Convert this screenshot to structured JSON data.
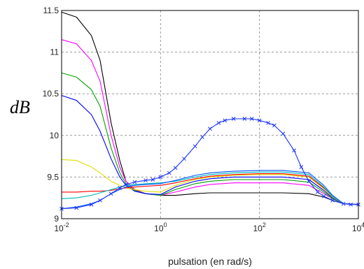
{
  "chart_data": {
    "type": "line",
    "title": "",
    "xlabel": "pulsation (en rad/s)",
    "ylabel": "dB",
    "xscale": "log",
    "xlim": [
      0.01,
      10000
    ],
    "ylim": [
      9,
      11.5
    ],
    "grid": true,
    "x_ticks": [
      {
        "value": 0.01,
        "base": "10",
        "exp": "-2"
      },
      {
        "value": 1,
        "base": "10",
        "exp": "0"
      },
      {
        "value": 100,
        "base": "10",
        "exp": "2"
      },
      {
        "value": 10000,
        "base": "10",
        "exp": "4"
      }
    ],
    "y_ticks": [
      {
        "value": 9,
        "label": "9"
      },
      {
        "value": 9.5,
        "label": "9.5"
      },
      {
        "value": 10,
        "label": "10"
      },
      {
        "value": 10.5,
        "label": "10.5"
      },
      {
        "value": 11,
        "label": "11"
      },
      {
        "value": 11.5,
        "label": "11.5"
      }
    ],
    "series": [
      {
        "color": "#000000",
        "x": [
          0.01,
          0.02,
          0.04,
          0.06,
          0.1,
          0.15,
          0.2,
          0.3,
          0.5,
          1,
          2,
          5,
          10,
          30,
          100,
          300,
          1000,
          2000,
          3000,
          5000,
          10000
        ],
        "y": [
          11.48,
          11.42,
          11.2,
          10.9,
          10.15,
          9.7,
          9.45,
          9.35,
          9.3,
          9.28,
          9.28,
          9.3,
          9.31,
          9.31,
          9.31,
          9.31,
          9.3,
          9.26,
          9.22,
          9.18,
          9.17
        ]
      },
      {
        "color": "#ff00ff",
        "x": [
          0.01,
          0.02,
          0.04,
          0.06,
          0.1,
          0.15,
          0.2,
          0.3,
          0.5,
          1,
          2,
          5,
          10,
          30,
          100,
          300,
          1000,
          2000,
          3000,
          5000,
          10000
        ],
        "y": [
          11.15,
          11.1,
          10.9,
          10.65,
          10.0,
          9.62,
          9.45,
          9.35,
          9.3,
          9.28,
          9.32,
          9.38,
          9.41,
          9.43,
          9.43,
          9.43,
          9.4,
          9.3,
          9.24,
          9.18,
          9.17
        ]
      },
      {
        "color": "#00a000",
        "x": [
          0.01,
          0.02,
          0.04,
          0.06,
          0.1,
          0.15,
          0.2,
          0.3,
          0.5,
          1,
          2,
          5,
          10,
          30,
          100,
          300,
          1000,
          2000,
          3000,
          5000,
          10000
        ],
        "y": [
          10.75,
          10.7,
          10.55,
          10.35,
          9.85,
          9.55,
          9.42,
          9.34,
          9.3,
          9.28,
          9.35,
          9.42,
          9.45,
          9.47,
          9.47,
          9.47,
          9.44,
          9.32,
          9.24,
          9.18,
          9.17
        ]
      },
      {
        "color": "#0000ff",
        "x": [
          0.01,
          0.02,
          0.04,
          0.06,
          0.1,
          0.15,
          0.2,
          0.3,
          0.5,
          1,
          2,
          5,
          10,
          30,
          100,
          300,
          1000,
          2000,
          3000,
          5000,
          10000
        ],
        "y": [
          10.48,
          10.42,
          10.25,
          10.05,
          9.72,
          9.5,
          9.4,
          9.33,
          9.3,
          9.29,
          9.38,
          9.45,
          9.48,
          9.5,
          9.5,
          9.5,
          9.47,
          9.34,
          9.25,
          9.18,
          9.17
        ]
      },
      {
        "color": "#dddd00",
        "x": [
          0.01,
          0.02,
          0.04,
          0.06,
          0.1,
          0.15,
          0.2,
          0.3,
          0.5,
          1,
          2,
          5,
          10,
          30,
          100,
          300,
          1000,
          2000,
          3000,
          5000,
          10000
        ],
        "y": [
          9.71,
          9.7,
          9.62,
          9.55,
          9.45,
          9.4,
          9.37,
          9.35,
          9.33,
          9.32,
          9.4,
          9.47,
          9.5,
          9.52,
          9.53,
          9.53,
          9.5,
          9.36,
          9.26,
          9.18,
          9.17
        ]
      },
      {
        "color": "#ff0000",
        "x": [
          0.01,
          0.02,
          0.04,
          0.06,
          0.1,
          0.15,
          0.2,
          0.3,
          0.5,
          1,
          2,
          5,
          10,
          30,
          100,
          300,
          1000,
          2000,
          3000,
          5000,
          10000
        ],
        "y": [
          9.32,
          9.32,
          9.33,
          9.33,
          9.34,
          9.36,
          9.37,
          9.38,
          9.39,
          9.4,
          9.43,
          9.48,
          9.51,
          9.53,
          9.54,
          9.54,
          9.51,
          9.37,
          9.27,
          9.18,
          9.17
        ]
      },
      {
        "color": "#00bbbb",
        "x": [
          0.01,
          0.02,
          0.04,
          0.06,
          0.1,
          0.15,
          0.2,
          0.3,
          0.5,
          1,
          2,
          5,
          10,
          30,
          100,
          300,
          1000,
          2000,
          3000,
          5000,
          10000
        ],
        "y": [
          9.24,
          9.25,
          9.28,
          9.31,
          9.35,
          9.38,
          9.4,
          9.41,
          9.42,
          9.43,
          9.45,
          9.5,
          9.53,
          9.55,
          9.56,
          9.56,
          9.53,
          9.38,
          9.27,
          9.18,
          9.17
        ]
      },
      {
        "color": "#0055ff",
        "x": [
          0.01,
          0.02,
          0.04,
          0.06,
          0.1,
          0.15,
          0.2,
          0.3,
          0.5,
          1,
          2,
          5,
          10,
          30,
          100,
          300,
          1000,
          2000,
          3000,
          5000,
          10000
        ],
        "y": [
          9.12,
          9.14,
          9.18,
          9.22,
          9.3,
          9.35,
          9.38,
          9.4,
          9.41,
          9.42,
          9.46,
          9.52,
          9.55,
          9.57,
          9.58,
          9.58,
          9.55,
          9.4,
          9.28,
          9.18,
          9.17
        ]
      },
      {
        "color": "#1a33ff",
        "marker": "x",
        "x": [
          0.01,
          0.02,
          0.04,
          0.06,
          0.1,
          0.15,
          0.2,
          0.3,
          0.5,
          0.7,
          1,
          1.5,
          2,
          3,
          5,
          7,
          10,
          15,
          20,
          30,
          50,
          70,
          100,
          150,
          200,
          300,
          500,
          700,
          1000,
          1500,
          2000,
          3000,
          5000,
          7000,
          10000
        ],
        "y": [
          9.12,
          9.13,
          9.17,
          9.22,
          9.3,
          9.37,
          9.41,
          9.44,
          9.46,
          9.47,
          9.5,
          9.55,
          9.61,
          9.72,
          9.87,
          9.98,
          10.08,
          10.15,
          10.18,
          10.2,
          10.2,
          10.2,
          10.18,
          10.15,
          10.12,
          10.02,
          9.82,
          9.62,
          9.45,
          9.32,
          9.27,
          9.22,
          9.18,
          9.17,
          9.17
        ]
      }
    ]
  }
}
